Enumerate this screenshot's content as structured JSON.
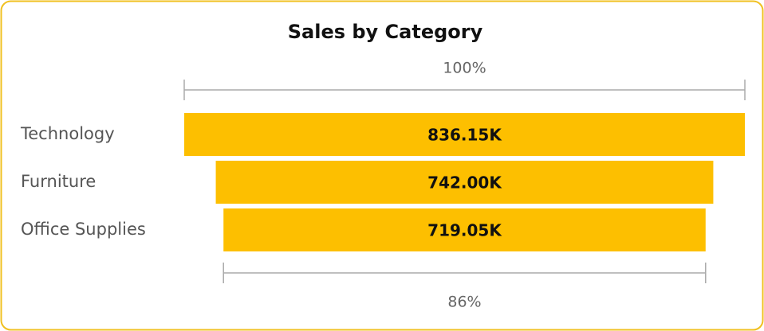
{
  "chart_data": {
    "type": "funnel",
    "title": "Sales by Category",
    "categories": [
      "Technology",
      "Furniture",
      "Office Supplies"
    ],
    "values": [
      836150,
      742000,
      719050
    ],
    "value_labels": [
      "836.15K",
      "742.00K",
      "719.05K"
    ],
    "color": "#fdbf00",
    "first_percent": {
      "value": 100,
      "label": "100%"
    },
    "last_percent": {
      "value": 86,
      "label": "86%"
    }
  }
}
